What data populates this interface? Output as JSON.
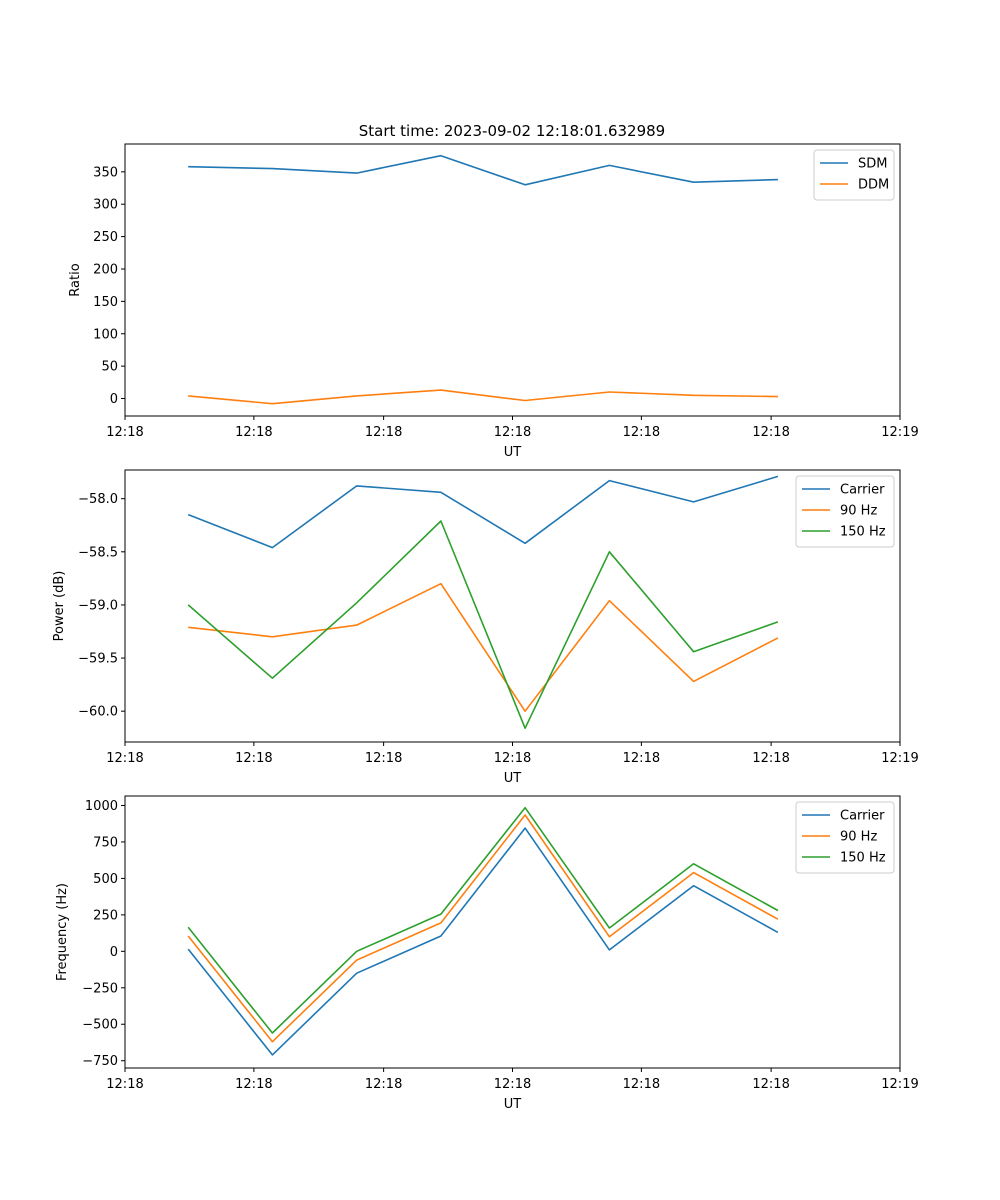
{
  "figure": {
    "title": "Start time: 2023-09-02 12:18:01.632989"
  },
  "chart_data": [
    {
      "type": "line",
      "title": "Start time: 2023-09-02 12:18:01.632989",
      "xlabel": "UT",
      "ylabel": "Ratio",
      "xlim": [
        0,
        9.2
      ],
      "ylim": [
        -27,
        393
      ],
      "xticks": [
        0.0,
        1.53,
        3.07,
        4.6,
        6.13,
        7.67,
        9.2
      ],
      "xtick_labels": [
        "12:18",
        "12:18",
        "12:18",
        "12:18",
        "12:18",
        "12:18",
        "12:19"
      ],
      "yticks": [
        0,
        50,
        100,
        150,
        200,
        250,
        300,
        350
      ],
      "ytick_labels": [
        "0",
        "50",
        "100",
        "150",
        "200",
        "250",
        "300",
        "350"
      ],
      "legend_position": "top-right",
      "x": [
        0.75,
        1.75,
        2.75,
        3.75,
        4.75,
        5.75,
        6.75,
        7.75
      ],
      "series": [
        {
          "name": "SDM",
          "color": "#1f77b4",
          "values": [
            358,
            355,
            348,
            375,
            330,
            360,
            334,
            338
          ]
        },
        {
          "name": "DDM",
          "color": "#ff7f0e",
          "values": [
            4,
            -8,
            4,
            13,
            -3,
            10,
            5,
            3
          ]
        }
      ]
    },
    {
      "type": "line",
      "xlabel": "UT",
      "ylabel": "Power (dB)",
      "xlim": [
        0,
        9.2
      ],
      "ylim": [
        -60.29,
        -57.73
      ],
      "xticks": [
        0.0,
        1.53,
        3.07,
        4.6,
        6.13,
        7.67,
        9.2
      ],
      "xtick_labels": [
        "12:18",
        "12:18",
        "12:18",
        "12:18",
        "12:18",
        "12:18",
        "12:19"
      ],
      "yticks": [
        -60.0,
        -59.5,
        -59.0,
        -58.5,
        -58.0
      ],
      "ytick_labels": [
        "−60.0",
        "−59.5",
        "−59.0",
        "−58.5",
        "−58.0"
      ],
      "legend_position": "top-right",
      "x": [
        0.75,
        1.75,
        2.75,
        3.75,
        4.75,
        5.75,
        6.75,
        7.75
      ],
      "series": [
        {
          "name": "Carrier",
          "color": "#1f77b4",
          "values": [
            -58.15,
            -58.46,
            -57.88,
            -57.94,
            -58.42,
            -57.83,
            -58.03,
            -57.79
          ]
        },
        {
          "name": "90 Hz",
          "color": "#ff7f0e",
          "values": [
            -59.21,
            -59.3,
            -59.19,
            -58.8,
            -60.0,
            -58.96,
            -59.72,
            -59.31
          ]
        },
        {
          "name": "150 Hz",
          "color": "#2ca02c",
          "values": [
            -59.0,
            -59.69,
            -58.98,
            -58.21,
            -60.16,
            -58.5,
            -59.44,
            -59.16
          ]
        }
      ]
    },
    {
      "type": "line",
      "xlabel": "UT",
      "ylabel": "Frequency (Hz)",
      "xlim": [
        0,
        9.2
      ],
      "ylim": [
        -800,
        1065
      ],
      "xticks": [
        0.0,
        1.53,
        3.07,
        4.6,
        6.13,
        7.67,
        9.2
      ],
      "xtick_labels": [
        "12:18",
        "12:18",
        "12:18",
        "12:18",
        "12:18",
        "12:18",
        "12:19"
      ],
      "yticks": [
        -750,
        -500,
        -250,
        0,
        250,
        500,
        750,
        1000
      ],
      "ytick_labels": [
        "−750",
        "−500",
        "−250",
        "0",
        "250",
        "500",
        "750",
        "1000"
      ],
      "legend_position": "top-right",
      "x": [
        0.75,
        1.75,
        2.75,
        3.75,
        4.75,
        5.75,
        6.75,
        7.75
      ],
      "series": [
        {
          "name": "Carrier",
          "color": "#1f77b4",
          "values": [
            15,
            -710,
            -150,
            105,
            845,
            10,
            450,
            130
          ]
        },
        {
          "name": "90 Hz",
          "color": "#ff7f0e",
          "values": [
            105,
            -620,
            -60,
            195,
            935,
            100,
            540,
            220
          ]
        },
        {
          "name": "150 Hz",
          "color": "#2ca02c",
          "values": [
            165,
            -560,
            0,
            255,
            985,
            160,
            600,
            280
          ]
        }
      ]
    }
  ]
}
